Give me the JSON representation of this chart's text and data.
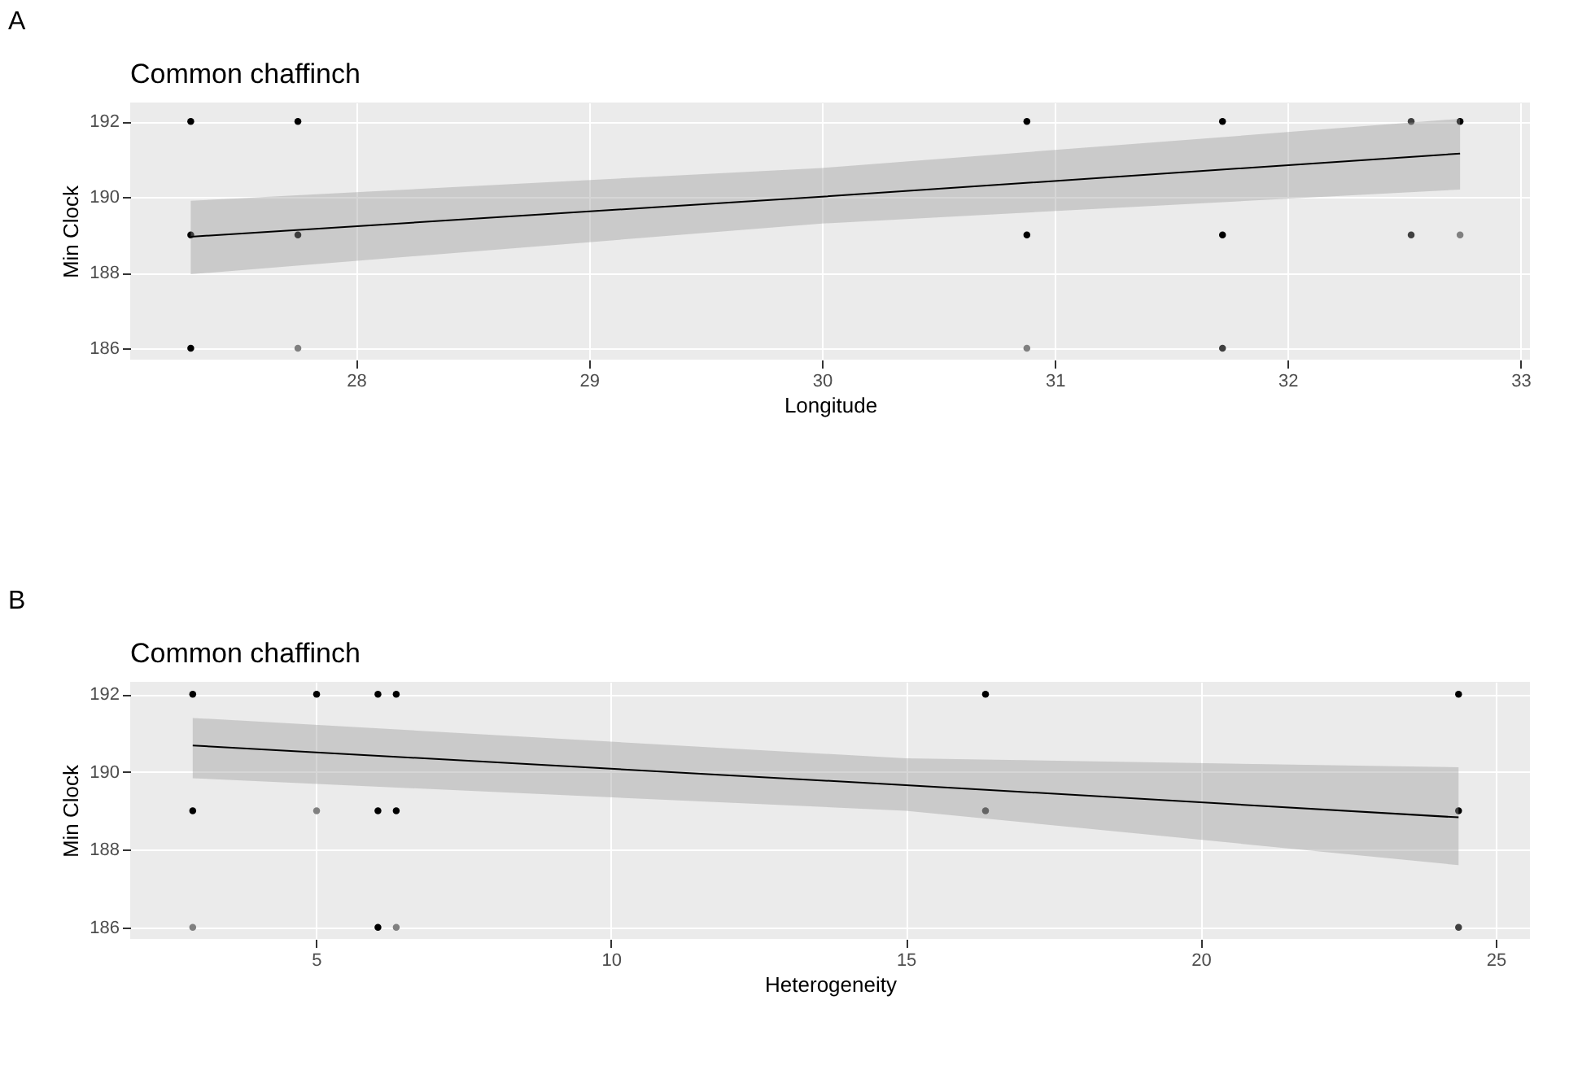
{
  "chart_data": [
    {
      "type": "scatter",
      "title": "Common chaffinch",
      "xlabel": "Longitude",
      "ylabel": "Min Clock",
      "annotations": [
        "A"
      ],
      "xlim": [
        27.03,
        33.04
      ],
      "xticks": [
        28,
        29,
        30,
        31,
        32,
        33
      ],
      "ylim": [
        185.7,
        192.5
      ],
      "yticks": [
        186,
        188,
        190,
        192
      ],
      "grid": true,
      "series": [
        {
          "type": "scatter",
          "marker": "circle",
          "x": [
            27.29,
            27.29,
            27.29,
            27.75,
            27.75,
            27.75,
            30.88,
            30.88,
            30.88,
            31.72,
            31.72,
            31.72,
            32.53,
            32.53,
            32.74,
            32.74
          ],
          "values": [
            192,
            189,
            186,
            192,
            189,
            186,
            192,
            189,
            186,
            192,
            189,
            186,
            192,
            189,
            192,
            189
          ],
          "colors": [
            "#000000",
            "#000000",
            "#000000",
            "#000000",
            "#000000",
            "#808080",
            "#000000",
            "#000000",
            "#808080",
            "#000000",
            "#000000",
            "#404040",
            "#404040",
            "#404040",
            "#000000",
            "#808080"
          ]
        },
        {
          "type": "line",
          "color": "#000000",
          "x": [
            27.29,
            30.0,
            32.74
          ],
          "values": [
            188.95,
            190.01,
            191.15
          ],
          "lower": [
            187.96,
            189.3,
            190.2
          ],
          "upper": [
            189.9,
            190.77,
            192.07
          ]
        }
      ]
    },
    {
      "type": "scatter",
      "title": "Common chaffinch",
      "xlabel": "Heterogeneity",
      "ylabel": "Min Clock",
      "annotations": [
        "B"
      ],
      "xlim": [
        1.85,
        25.58
      ],
      "xticks": [
        5,
        10,
        15,
        20,
        25
      ],
      "ylim": [
        185.7,
        192.32
      ],
      "yticks": [
        186,
        188,
        190,
        192
      ],
      "grid": true,
      "series": [
        {
          "type": "scatter",
          "marker": "circle",
          "x": [
            2.91,
            2.91,
            2.91,
            5.01,
            5.01,
            6.05,
            6.05,
            6.05,
            6.36,
            6.36,
            6.36,
            16.35,
            16.35,
            24.37,
            24.37,
            24.37
          ],
          "values": [
            192,
            189,
            186,
            192,
            189,
            192,
            189,
            186,
            192,
            189,
            186,
            192,
            189,
            192,
            189,
            186
          ],
          "colors": [
            "#000000",
            "#000000",
            "#808080",
            "#000000",
            "#808080",
            "#000000",
            "#000000",
            "#000000",
            "#000000",
            "#000000",
            "#808080",
            "#000000",
            "#404040",
            "#000000",
            "#000000",
            "#404040"
          ]
        },
        {
          "type": "line",
          "color": "#000000",
          "x": [
            2.91,
            15.0,
            24.37
          ],
          "values": [
            190.68,
            189.66,
            188.83
          ],
          "lower": [
            189.84,
            189.0,
            187.6
          ],
          "upper": [
            191.39,
            190.35,
            190.12
          ]
        }
      ]
    }
  ]
}
